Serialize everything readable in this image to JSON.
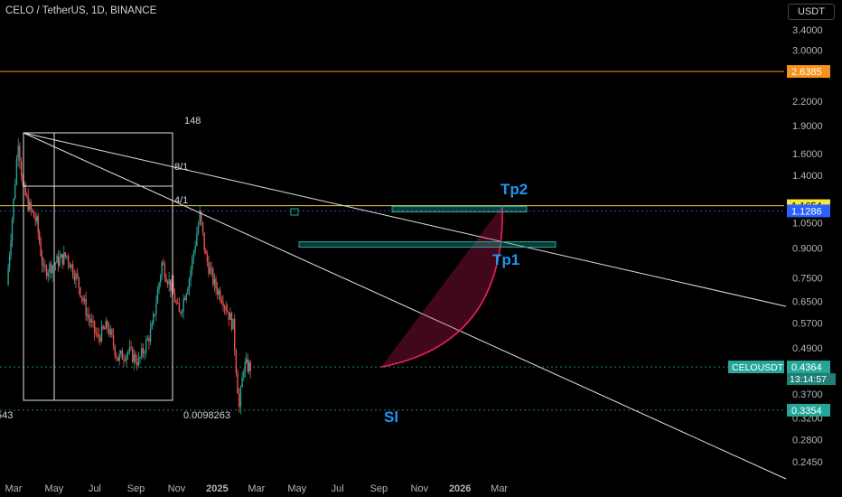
{
  "header": {
    "title": "CELO / TetherUS, 1D, BINANCE"
  },
  "currency_button": {
    "label": "USDT"
  },
  "colors": {
    "background": "#000000",
    "up_candle": "#26a69a",
    "down_candle": "#ef5350",
    "orange_line": "#f7931a",
    "yellow_line": "#e8d44d",
    "blue_line": "#2962ff",
    "curve": "#e91e63",
    "target_box": "#26a69a",
    "annotation_text": "#2196f3",
    "drawing": "#e0e0e0"
  },
  "annotations": {
    "tp2": "Tp2",
    "tp1": "Tp1",
    "sl": "Sl",
    "fan_148": "148",
    "fan_8_1": "8/1",
    "fan_4_1": "4/1",
    "low_value": "0.0098263",
    "left_cut_value": "543"
  },
  "chart_data": {
    "type": "candlestick",
    "symbol": "CELOUSDT",
    "timeframe": "1D",
    "exchange": "BINANCE",
    "log_scale": true,
    "ylim": [
      0.22,
      3.6
    ],
    "y_ticks": [
      "3.4000",
      "3.0000",
      "2.2000",
      "1.9000",
      "1.6000",
      "1.4000",
      "1.0500",
      "0.9000",
      "0.7500",
      "0.6500",
      "0.5700",
      "0.4900",
      "0.3700",
      "0.3200",
      "0.2800",
      "0.2450"
    ],
    "x_ticks": [
      "Mar",
      "May",
      "Jul",
      "Sep",
      "Nov",
      "2025",
      "Mar",
      "May",
      "Jul",
      "Sep",
      "Nov",
      "2026",
      "Mar"
    ],
    "price_labels": [
      {
        "value": "2.6385",
        "color": "#f7931a"
      },
      {
        "value": "1.1654",
        "color": "#f5e642"
      },
      {
        "value": "1.1286",
        "color": "#2962ff"
      },
      {
        "value": "0.4364",
        "color": "#26a69a"
      },
      {
        "value": "0.3354",
        "color": "#26a69a"
      }
    ],
    "current_price": {
      "symbol": "CELOUSDT",
      "value": "0.4364",
      "countdown": "13:14:57"
    },
    "horizontal_lines": [
      {
        "value": 2.6385,
        "color": "#f7931a"
      },
      {
        "value": 1.1654,
        "color": "#e8d44d"
      },
      {
        "value": 1.1286,
        "color": "#2962ff"
      },
      {
        "value": 0.4364,
        "color": "#26a69a"
      },
      {
        "value": 0.3354,
        "color": "#26a69a"
      }
    ],
    "targets": [
      {
        "name": "Tp2",
        "price": 1.1654
      },
      {
        "name": "Tp1",
        "price": 0.92
      },
      {
        "name": "Sl",
        "price": 0.3354
      }
    ],
    "price_path": [
      {
        "date": "2024-02-20",
        "close": 0.72
      },
      {
        "date": "2024-03-01",
        "close": 1.2
      },
      {
        "date": "2024-03-08",
        "close": 1.75
      },
      {
        "date": "2024-03-15",
        "close": 1.3
      },
      {
        "date": "2024-03-25",
        "close": 1.15
      },
      {
        "date": "2024-04-05",
        "close": 1.05
      },
      {
        "date": "2024-04-15",
        "close": 0.78
      },
      {
        "date": "2024-05-01",
        "close": 0.82
      },
      {
        "date": "2024-05-20",
        "close": 0.86
      },
      {
        "date": "2024-06-05",
        "close": 0.74
      },
      {
        "date": "2024-06-20",
        "close": 0.6
      },
      {
        "date": "2024-07-05",
        "close": 0.52
      },
      {
        "date": "2024-07-20",
        "close": 0.56
      },
      {
        "date": "2024-08-05",
        "close": 0.46
      },
      {
        "date": "2024-08-20",
        "close": 0.48
      },
      {
        "date": "2024-09-05",
        "close": 0.45
      },
      {
        "date": "2024-09-25",
        "close": 0.55
      },
      {
        "date": "2024-10-10",
        "close": 0.82
      },
      {
        "date": "2024-10-25",
        "close": 0.7
      },
      {
        "date": "2024-11-05",
        "close": 0.6
      },
      {
        "date": "2024-11-20",
        "close": 0.75
      },
      {
        "date": "2024-12-06",
        "close": 1.1
      },
      {
        "date": "2024-12-15",
        "close": 0.85
      },
      {
        "date": "2024-12-28",
        "close": 0.72
      },
      {
        "date": "2025-01-10",
        "close": 0.66
      },
      {
        "date": "2025-01-25",
        "close": 0.56
      },
      {
        "date": "2025-02-03",
        "close": 0.34
      },
      {
        "date": "2025-02-10",
        "close": 0.44
      },
      {
        "date": "2025-02-20",
        "close": 0.4364
      }
    ]
  }
}
